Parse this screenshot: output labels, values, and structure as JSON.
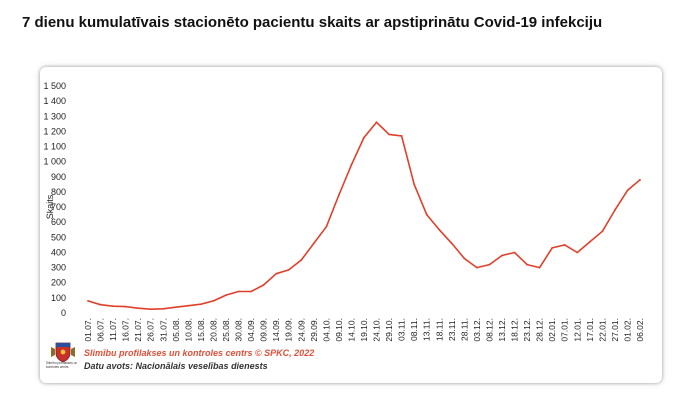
{
  "title": "7 dienu kumulatīvais stacionēto pacientu skaits ar apstiprinātu Covid-19 infekciju",
  "logo": {
    "icon": "coat-of-arms-icon",
    "text": "Slimību profilakses un kontroles centrs"
  },
  "credit": "Slimību profilakses un kontroles centrs © SPKC, 2022",
  "source": "Datu avots: Nacionālais veselības dienests",
  "chart_data": {
    "type": "line",
    "title": "7 dienu kumulatīvais stacionēto pacientu skaits ar apstiprinātu Covid-19 infekciju",
    "xlabel": "",
    "ylabel": "Skaits",
    "ylim": [
      0,
      1500
    ],
    "yticks": [
      {
        "value": 0,
        "label": "0"
      },
      {
        "value": 100,
        "label": "100"
      },
      {
        "value": 200,
        "label": "200"
      },
      {
        "value": 300,
        "label": "300"
      },
      {
        "value": 400,
        "label": "400"
      },
      {
        "value": 500,
        "label": "500"
      },
      {
        "value": 600,
        "label": "600"
      },
      {
        "value": 700,
        "label": "700"
      },
      {
        "value": 800,
        "label": "800"
      },
      {
        "value": 900,
        "label": "900"
      },
      {
        "value": 1000,
        "label": "1 000"
      },
      {
        "value": 1100,
        "label": "1 100"
      },
      {
        "value": 1200,
        "label": "1 200"
      },
      {
        "value": 1300,
        "label": "1 300"
      },
      {
        "value": 1400,
        "label": "1 400"
      },
      {
        "value": 1500,
        "label": "1 500"
      }
    ],
    "categories": [
      "01.07.",
      "06.07.",
      "11.07.",
      "16.07.",
      "21.07.",
      "26.07.",
      "31.07.",
      "05.08.",
      "10.08.",
      "15.08.",
      "20.08.",
      "25.08.",
      "30.08.",
      "04.09.",
      "09.09.",
      "14.09.",
      "19.09.",
      "24.09.",
      "29.09.",
      "04.10.",
      "09.10.",
      "14.10.",
      "19.10.",
      "24.10.",
      "29.10.",
      "03.11.",
      "08.11.",
      "13.11.",
      "18.11.",
      "23.11.",
      "28.11.",
      "03.12.",
      "08.12.",
      "13.12.",
      "18.12.",
      "23.12.",
      "28.12.",
      "02.01.",
      "07.01.",
      "12.01.",
      "17.01.",
      "22.01.",
      "27.01.",
      "01.02.",
      "06.02."
    ],
    "series": [
      {
        "color": "#e0402a",
        "values": [
          80,
          55,
          45,
          42,
          32,
          25,
          28,
          38,
          48,
          58,
          80,
          118,
          142,
          142,
          185,
          260,
          285,
          350,
          460,
          570,
          780,
          980,
          1160,
          1260,
          1180,
          1170,
          850,
          650,
          550,
          460,
          360,
          300,
          320,
          380,
          400,
          320,
          300,
          430,
          450,
          400,
          470,
          540,
          680,
          810,
          880
        ]
      }
    ],
    "grid": false,
    "legend": "none"
  }
}
